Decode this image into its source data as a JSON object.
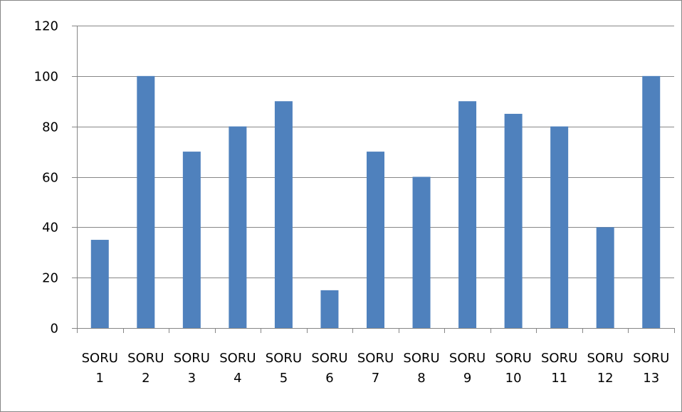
{
  "chart_data": {
    "type": "bar",
    "categories": [
      [
        "SORU",
        "1"
      ],
      [
        "SORU",
        "2"
      ],
      [
        "SORU",
        "3"
      ],
      [
        "SORU",
        "4"
      ],
      [
        "SORU",
        "5"
      ],
      [
        "SORU",
        "6"
      ],
      [
        "SORU",
        "7"
      ],
      [
        "SORU",
        "8"
      ],
      [
        "SORU",
        "9"
      ],
      [
        "SORU",
        "10"
      ],
      [
        "SORU",
        "11"
      ],
      [
        "SORU",
        "12"
      ],
      [
        "SORU",
        "13"
      ]
    ],
    "values": [
      35,
      100,
      70,
      80,
      90,
      15,
      70,
      60,
      90,
      85,
      80,
      40,
      100
    ],
    "title": "",
    "xlabel": "",
    "ylabel": "",
    "ylim": [
      0,
      120
    ],
    "yticks": [
      0,
      20,
      40,
      60,
      80,
      100,
      120
    ],
    "grid": true,
    "bar_color": "#4F81BD",
    "gridline_color": "#878787",
    "axis_color": "#868686"
  }
}
